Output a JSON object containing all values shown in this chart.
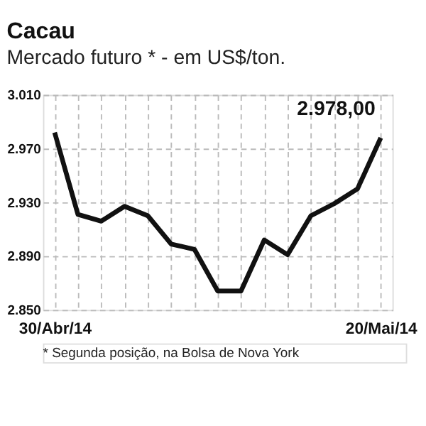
{
  "chart_data": {
    "type": "line",
    "title": "Cacau",
    "subtitle": "Mercado futuro * - em US$/ton.",
    "categories": [
      "30/Abr/14",
      null,
      null,
      null,
      null,
      null,
      null,
      null,
      null,
      null,
      null,
      null,
      null,
      null,
      "20/Mai/14"
    ],
    "series": [
      {
        "color": "#111111",
        "values": [
          2982,
          2921,
          2916,
          2927,
          2920,
          2899,
          2895,
          2864,
          2864,
          2902,
          2891,
          2920,
          2929,
          2940,
          2978
        ]
      }
    ],
    "ylim": [
      2850,
      3010
    ],
    "yticks": [
      {
        "value": 2850,
        "label": "2.850"
      },
      {
        "value": 2890,
        "label": "2.890"
      },
      {
        "value": 2930,
        "label": "2.930"
      },
      {
        "value": 2970,
        "label": "2.970"
      },
      {
        "value": 3010,
        "label": "3.010"
      }
    ],
    "grid": true,
    "marker": "none",
    "line_style": "solid",
    "annotations": [
      {
        "text": "2.978,00",
        "x": "20/Mai/14",
        "y": 2978
      },
      "* Segunda posição, na Bolsa de Nova York"
    ]
  }
}
